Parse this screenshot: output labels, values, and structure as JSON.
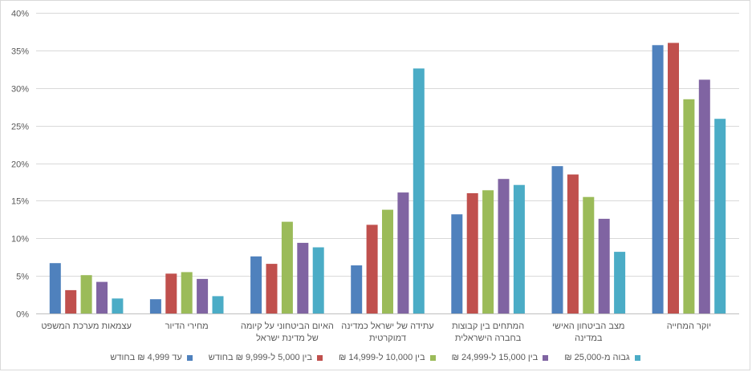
{
  "chart_data": {
    "type": "bar",
    "title": "",
    "xlabel": "",
    "ylabel": "",
    "ylim": [
      0,
      40
    ],
    "y_ticks": [
      "0%",
      "5%",
      "10%",
      "15%",
      "20%",
      "25%",
      "30%",
      "35%",
      "40%"
    ],
    "grid": "horizontal",
    "legend_position": "bottom",
    "categories": [
      [
        "יוקר המחייה"
      ],
      [
        "מצב הביטחון האישי",
        "במדינה"
      ],
      [
        "המתחים בין קבוצות",
        "בחברה הישראלית"
      ],
      [
        "עתידה של ישראל כמדינה",
        "דמוקרטית"
      ],
      [
        "האיום הביטחוני על קיומה",
        "של מדינת ישראל"
      ],
      [
        "מחירי הדיור"
      ],
      [
        "עצמאות מערכת המשפט"
      ]
    ],
    "series": [
      {
        "name": "עד 4,999 ₪ בחודש",
        "color": "#4f81bd",
        "values": [
          35.7,
          19.6,
          13.2,
          6.4,
          7.6,
          1.9,
          6.7
        ]
      },
      {
        "name": "בין 5,000 ל-9,999 ₪ בחודש",
        "color": "#c0504d",
        "values": [
          36.0,
          18.5,
          16.0,
          11.8,
          6.6,
          5.3,
          3.1
        ]
      },
      {
        "name": "בין 10,000 ל-14,999 ₪",
        "color": "#9bbb59",
        "values": [
          28.5,
          15.5,
          16.4,
          13.8,
          12.2,
          5.5,
          5.1
        ]
      },
      {
        "name": "בין 15,000 ל-24,999 ₪",
        "color": "#8064a2",
        "values": [
          31.1,
          12.6,
          17.9,
          16.1,
          9.4,
          4.6,
          4.2
        ]
      },
      {
        "name": "גבוה מ-25,000 ₪",
        "color": "#4bacc6",
        "values": [
          25.9,
          8.2,
          17.1,
          32.6,
          8.8,
          2.3,
          2.0
        ]
      }
    ]
  }
}
